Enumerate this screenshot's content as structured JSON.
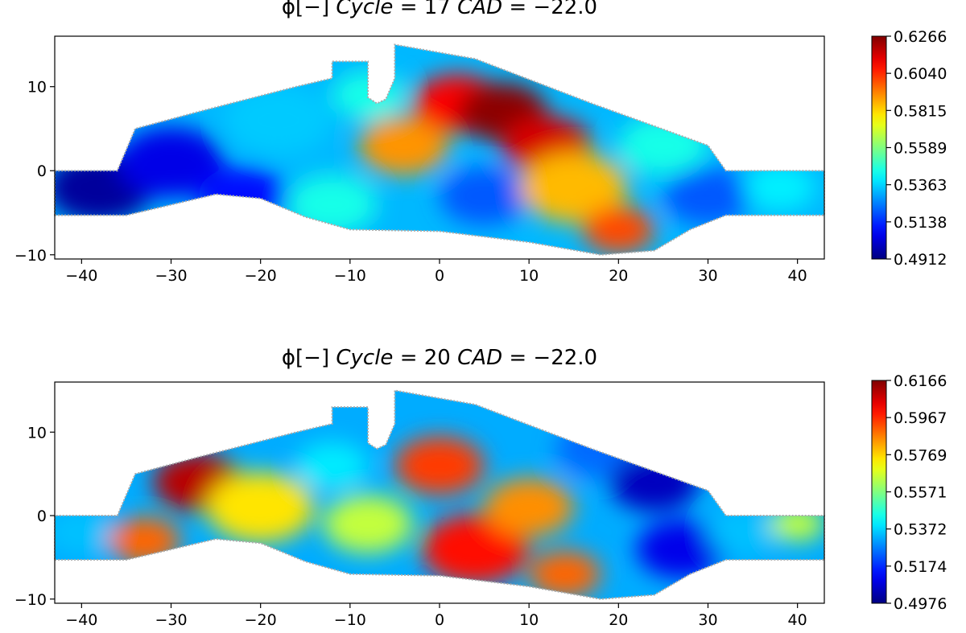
{
  "chart_data": [
    {
      "type": "heatmap",
      "title": "ϕ[−] Cycle = 17 CAD = −22.0",
      "title_parts": {
        "quantity": "ϕ[−]",
        "cycle_label": "Cycle",
        "cycle": "17",
        "cad_label": "CAD",
        "cad": "−22.0"
      },
      "x_ticks": [
        "−40",
        "−30",
        "−20",
        "−10",
        "0",
        "10",
        "20",
        "30",
        "40"
      ],
      "x_tick_values": [
        -40,
        -30,
        -20,
        -10,
        0,
        10,
        20,
        30,
        40
      ],
      "y_ticks": [
        "10",
        "0",
        "−10"
      ],
      "y_tick_values": [
        10,
        0,
        -10
      ],
      "xlim": [
        -43,
        43
      ],
      "ylim": [
        -10.5,
        16
      ],
      "colormap": "jet",
      "colorbar": {
        "ticks": [
          "0.6266",
          "0.6040",
          "0.5815",
          "0.5589",
          "0.5363",
          "0.5138",
          "0.4912"
        ],
        "min": 0.4912,
        "max": 0.6266
      },
      "regions": [
        {
          "x": -38,
          "y": -2,
          "v": 0.495,
          "r": 6
        },
        {
          "x": -30,
          "y": 1,
          "v": 0.505,
          "r": 6
        },
        {
          "x": -22,
          "y": -3,
          "v": 0.51,
          "r": 5
        },
        {
          "x": -18,
          "y": 6,
          "v": 0.535,
          "r": 6
        },
        {
          "x": -12,
          "y": -4,
          "v": 0.545,
          "r": 5
        },
        {
          "x": -8,
          "y": 9,
          "v": 0.545,
          "r": 4
        },
        {
          "x": -4,
          "y": 3,
          "v": 0.59,
          "r": 5
        },
        {
          "x": 2,
          "y": 8,
          "v": 0.61,
          "r": 5
        },
        {
          "x": 7,
          "y": 7,
          "v": 0.625,
          "r": 5
        },
        {
          "x": 12,
          "y": 3,
          "v": 0.615,
          "r": 5
        },
        {
          "x": 5,
          "y": -3,
          "v": 0.52,
          "r": 5
        },
        {
          "x": 15,
          "y": -2,
          "v": 0.585,
          "r": 6
        },
        {
          "x": 20,
          "y": -7,
          "v": 0.6,
          "r": 4
        },
        {
          "x": 25,
          "y": 3,
          "v": 0.545,
          "r": 5
        },
        {
          "x": 30,
          "y": -3,
          "v": 0.52,
          "r": 5
        },
        {
          "x": 38,
          "y": -2,
          "v": 0.54,
          "r": 4
        }
      ]
    },
    {
      "type": "heatmap",
      "title": "ϕ[−] Cycle = 20 CAD = −22.0",
      "title_parts": {
        "quantity": "ϕ[−]",
        "cycle_label": "Cycle",
        "cycle": "20",
        "cad_label": "CAD",
        "cad": "−22.0"
      },
      "x_ticks": [
        "−40",
        "−30",
        "−20",
        "−10",
        "0",
        "10",
        "20",
        "30",
        "40"
      ],
      "x_tick_values": [
        -40,
        -30,
        -20,
        -10,
        0,
        10,
        20,
        30,
        40
      ],
      "y_ticks": [
        "10",
        "0",
        "−10"
      ],
      "y_tick_values": [
        10,
        0,
        -10
      ],
      "xlim": [
        -43,
        43
      ],
      "ylim": [
        -10.5,
        16
      ],
      "colormap": "jet",
      "colorbar": {
        "ticks": [
          "0.6166",
          "0.5967",
          "0.5769",
          "0.5571",
          "0.5372",
          "0.5174",
          "0.4976"
        ],
        "min": 0.4976,
        "max": 0.6166
      },
      "regions": [
        {
          "x": -40,
          "y": -2,
          "v": 0.535,
          "r": 4
        },
        {
          "x": -33,
          "y": -3,
          "v": 0.59,
          "r": 4
        },
        {
          "x": -27,
          "y": 4,
          "v": 0.61,
          "r": 5
        },
        {
          "x": -20,
          "y": 1,
          "v": 0.575,
          "r": 6
        },
        {
          "x": -12,
          "y": 6,
          "v": 0.54,
          "r": 4
        },
        {
          "x": -8,
          "y": -1,
          "v": 0.565,
          "r": 5
        },
        {
          "x": 0,
          "y": 6,
          "v": 0.595,
          "r": 5
        },
        {
          "x": 4,
          "y": -4,
          "v": 0.6,
          "r": 6
        },
        {
          "x": 10,
          "y": 1,
          "v": 0.585,
          "r": 5
        },
        {
          "x": 14,
          "y": -7,
          "v": 0.59,
          "r": 4
        },
        {
          "x": 18,
          "y": 8,
          "v": 0.525,
          "r": 5
        },
        {
          "x": 24,
          "y": 4,
          "v": 0.505,
          "r": 5
        },
        {
          "x": 27,
          "y": -4,
          "v": 0.51,
          "r": 5
        },
        {
          "x": 34,
          "y": -2,
          "v": 0.535,
          "r": 4
        },
        {
          "x": 40,
          "y": -1,
          "v": 0.565,
          "r": 3
        }
      ]
    }
  ]
}
